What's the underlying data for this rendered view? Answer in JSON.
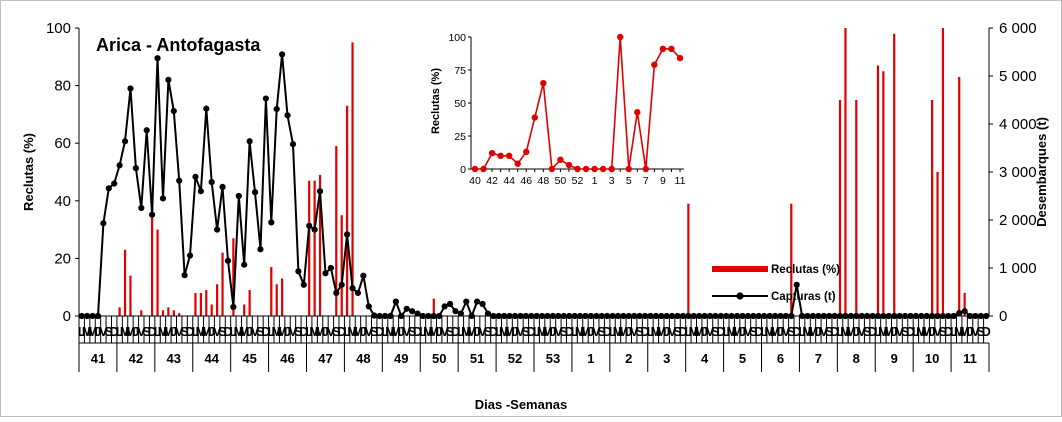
{
  "chart_data": [
    {
      "type": "bar+line",
      "title": "Arica  - Antofagasta",
      "xlabel": "Dias -Semanas",
      "ylabel_left": "Reclutas (%)",
      "ylabel_right": "Desembarques (t)",
      "ylim_left": [
        0,
        100
      ],
      "ylim_right": [
        0,
        6000
      ],
      "yticks_left": [
        "0",
        "20",
        "40",
        "60",
        "80",
        "100"
      ],
      "yticks_right": [
        "0",
        "1 000",
        "2 000",
        "3 000",
        "4 000",
        "5 000",
        "6 000"
      ],
      "grid": false,
      "legend_position": "right, inside plot",
      "day_labels": [
        "L",
        "M",
        "M",
        "J",
        "V",
        "S",
        "D"
      ],
      "day_label_display": "V",
      "weeks": [
        "41",
        "42",
        "43",
        "44",
        "45",
        "46",
        "47",
        "48",
        "49",
        "50",
        "51",
        "52",
        "53",
        "1",
        "2",
        "3",
        "4",
        "5",
        "6",
        "7",
        "8",
        "9",
        "10",
        "11"
      ],
      "series": [
        {
          "name": "Reclutas (%)",
          "kind": "bar",
          "axis": "left",
          "color": "#e00000",
          "values": [
            0,
            0,
            0,
            0,
            0,
            0,
            0,
            3,
            23,
            14,
            0,
            2,
            0,
            38,
            30,
            2,
            3,
            2,
            1,
            0,
            0,
            8,
            8,
            9,
            4,
            11,
            22,
            0,
            27,
            0,
            4,
            9,
            0,
            0,
            0,
            17,
            11,
            13,
            0,
            0,
            0,
            0,
            47,
            47,
            49,
            0,
            0,
            59,
            35,
            73,
            95,
            0,
            0,
            0,
            0,
            0,
            0,
            0,
            0,
            0,
            0,
            0,
            0,
            0,
            0,
            6,
            0,
            0,
            0,
            0,
            0,
            0,
            0,
            0,
            0,
            0,
            0,
            0,
            0,
            0,
            0,
            0,
            0,
            0,
            0,
            0,
            0,
            0,
            0,
            0,
            0,
            0,
            0,
            0,
            0,
            0,
            0,
            0,
            0,
            0,
            0,
            0,
            0,
            0,
            0,
            0,
            0,
            0,
            0,
            0,
            0,
            0,
            39,
            0,
            0,
            0,
            0,
            0,
            0,
            0,
            0,
            0,
            0,
            0,
            0,
            0,
            0,
            0,
            0,
            0,
            0,
            39,
            0,
            0,
            0,
            0,
            0,
            0,
            0,
            0,
            75,
            100,
            0,
            75,
            0,
            0,
            0,
            87,
            85,
            0,
            98,
            0,
            0,
            0,
            0,
            0,
            0,
            75,
            50,
            100,
            0,
            0,
            83,
            8,
            0,
            0,
            0,
            0
          ]
        },
        {
          "name": "Capturas (t)",
          "kind": "line",
          "axis": "right",
          "color": "#000000",
          "marker": "circle",
          "values": [
            0,
            0,
            0,
            0,
            1930,
            2660,
            2760,
            3140,
            3640,
            4740,
            3080,
            2250,
            3870,
            2110,
            5370,
            2450,
            4920,
            4270,
            2820,
            850,
            1260,
            2900,
            2600,
            4320,
            2790,
            1800,
            2690,
            1150,
            190,
            2500,
            1070,
            3640,
            2580,
            1390,
            4530,
            1950,
            4310,
            5450,
            4180,
            3580,
            930,
            650,
            1880,
            1800,
            2600,
            890,
            1000,
            480,
            650,
            1700,
            580,
            480,
            840,
            200,
            10,
            0,
            0,
            0,
            300,
            0,
            150,
            100,
            50,
            0,
            0,
            0,
            0,
            200,
            250,
            100,
            50,
            300,
            0,
            300,
            250,
            50,
            0,
            0,
            0,
            0,
            0,
            0,
            0,
            0,
            0,
            0,
            0,
            0,
            0,
            0,
            0,
            0,
            0,
            0,
            0,
            0,
            0,
            0,
            0,
            0,
            0,
            0,
            0,
            0,
            0,
            0,
            0,
            0,
            0,
            0,
            0,
            0,
            0,
            0,
            0,
            0,
            0,
            0,
            0,
            0,
            0,
            0,
            0,
            0,
            0,
            0,
            0,
            0,
            0,
            0,
            0,
            0,
            650,
            0,
            0,
            0,
            0,
            0,
            0,
            0,
            0,
            0,
            0,
            0,
            0,
            0,
            0,
            0,
            0,
            0,
            0,
            0,
            0,
            0,
            0,
            0,
            0,
            0,
            0,
            0,
            0,
            0,
            60,
            100,
            0,
            0,
            0,
            0
          ]
        }
      ],
      "legend": [
        "Reclutas (%)",
        "Capturas (t)"
      ]
    },
    {
      "type": "line",
      "placement": "inset",
      "ylabel": "Reclutas (%)",
      "ylim": [
        0,
        100
      ],
      "yticks": [
        "0",
        "25",
        "50",
        "75",
        "100"
      ],
      "x": [
        "40",
        "41",
        "42",
        "43",
        "44",
        "45",
        "46",
        "47",
        "48",
        "49",
        "50",
        "51",
        "52",
        "53",
        "1",
        "2",
        "3",
        "4",
        "5",
        "6",
        "7",
        "8",
        "9",
        "10",
        "11"
      ],
      "x_tick_labels": [
        "40",
        "42",
        "44",
        "46",
        "48",
        "50",
        "52",
        "1",
        "3",
        "5",
        "7",
        "9",
        "11"
      ],
      "series": [
        {
          "name": "Reclutas (%)",
          "color": "#e00000",
          "values": [
            0,
            0,
            12,
            10,
            10,
            4,
            13,
            39,
            65,
            0,
            7,
            3,
            0,
            0,
            0,
            0,
            0,
            100,
            0,
            43,
            0,
            79,
            91,
            91,
            84
          ]
        }
      ]
    }
  ]
}
